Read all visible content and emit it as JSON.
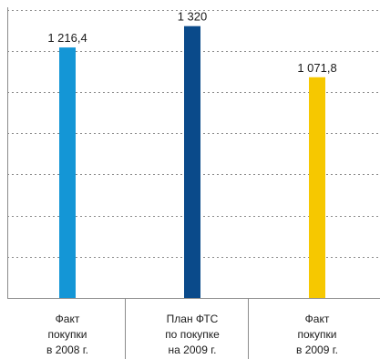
{
  "chart_data": {
    "type": "bar",
    "categories": [
      [
        "Факт",
        "покупки",
        "в 2008 г."
      ],
      [
        "План ФТС",
        "по покупке",
        "на 2009 г."
      ],
      [
        "Факт",
        "покупки",
        "в 2009 г."
      ]
    ],
    "values": [
      1216.4,
      1320,
      1071.8
    ],
    "value_labels": [
      "1 216,4",
      "1 320",
      "1 071,8"
    ],
    "colors": [
      "#1496d6",
      "#0a4a8a",
      "#f6c800"
    ],
    "ylim": [
      0,
      1400
    ],
    "grid": true,
    "title": "",
    "xlabel": "",
    "ylabel": ""
  }
}
